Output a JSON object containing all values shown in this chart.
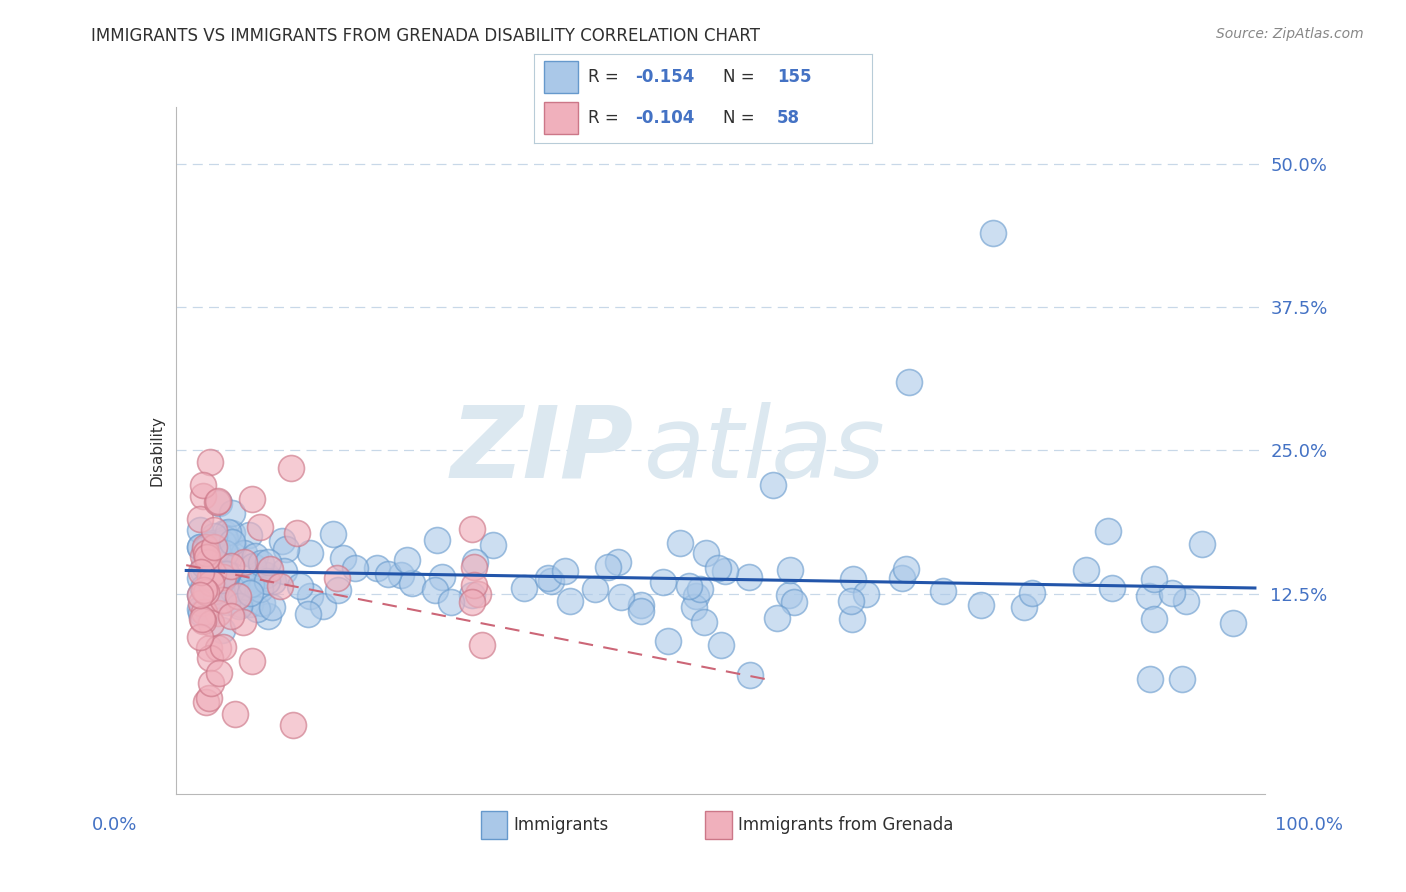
{
  "title": "IMMIGRANTS VS IMMIGRANTS FROM GRENADA DISABILITY CORRELATION CHART",
  "source": "Source: ZipAtlas.com",
  "ylabel": "Disability",
  "xlim": [
    -0.02,
    1.02
  ],
  "ylim": [
    -0.05,
    0.55
  ],
  "ytick_vals": [
    0.125,
    0.25,
    0.375,
    0.5
  ],
  "ytick_labels": [
    "12.5%",
    "25.0%",
    "37.5%",
    "50.0%"
  ],
  "background_color": "#ffffff",
  "grid_color": "#c8d8e8",
  "title_color": "#303030",
  "axis_label_color": "#4472c4",
  "watermark_zip": "ZIP",
  "watermark_atlas": "atlas",
  "watermark_color": "#dce8f0",
  "imm_color": "#aac8e8",
  "imm_edge_color": "#6699cc",
  "imm_line_color": "#2255aa",
  "gren_color": "#f0b0bc",
  "gren_edge_color": "#cc7788",
  "gren_line_color": "#cc6677",
  "legend_box_color": "#b8ccd8",
  "r_value_imm": "-0.154",
  "n_value_imm": "155",
  "r_value_gren": "-0.104",
  "n_value_gren": "58"
}
